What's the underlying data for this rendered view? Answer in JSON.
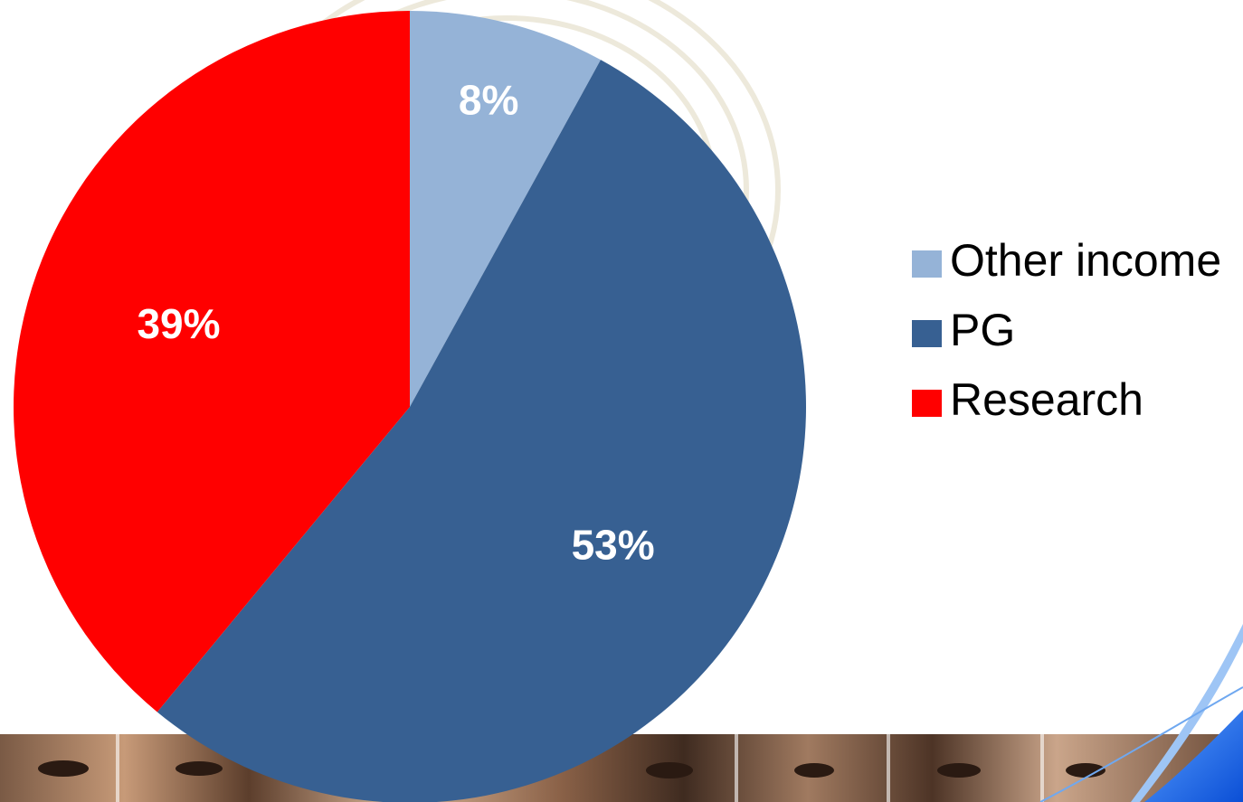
{
  "colors": {
    "other_income": "#95b3d7",
    "pg": "#376092",
    "research": "#ff0000",
    "label_text": "#ffffff",
    "legend_text": "#000000",
    "accent_blue": "#1a73e8"
  },
  "background": {
    "fingerprint_watermark": "fingerprint-watermark",
    "faces_strip": "faces-strip-image",
    "swoosh": "blue-swoosh-graphic"
  },
  "chart_data": {
    "type": "pie",
    "categories": [
      "Other income",
      "PG",
      "Research"
    ],
    "values": [
      8,
      53,
      39
    ],
    "labels": [
      "8%",
      "53%",
      "39%"
    ],
    "colors": [
      "#95b3d7",
      "#376092",
      "#ff0000"
    ],
    "title": "",
    "legend_position": "right",
    "start": "top, clockwise"
  }
}
